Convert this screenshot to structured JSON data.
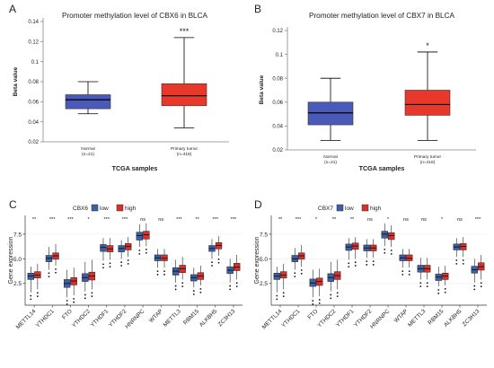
{
  "chart_data": [
    {
      "panel": "A",
      "type": "box",
      "title": "Promoter methylation level of CBX6 in BLCA",
      "xlabel": "TCGA samples",
      "ylabel": "Beta value",
      "ylim": [
        0.02,
        0.14
      ],
      "yticks": [
        "0.02",
        "0.04",
        "0.06",
        "0.08",
        "0.1",
        "0.12",
        "0.14"
      ],
      "categories": [
        {
          "label": "Normal",
          "n": "(n=21)",
          "color": "#4a5ab8",
          "min": 0.048,
          "q1": 0.053,
          "median": 0.062,
          "q3": 0.067,
          "max": 0.08
        },
        {
          "label": "Primary tumor",
          "n": "(n=418)",
          "color": "#e8382c",
          "min": 0.034,
          "q1": 0.056,
          "median": 0.066,
          "q3": 0.078,
          "max": 0.124
        }
      ],
      "significance": "***"
    },
    {
      "panel": "B",
      "type": "box",
      "title": "Promoter methylation level of CBX7 in BLCA",
      "xlabel": "TCGA samples",
      "ylabel": "Beta value",
      "ylim": [
        0.02,
        0.12
      ],
      "yticks": [
        "0.02",
        "0.04",
        "0.06",
        "0.08",
        "0.1",
        "0.12"
      ],
      "categories": [
        {
          "label": "Normal",
          "n": "(n=21)",
          "color": "#4a5ab8",
          "min": 0.028,
          "q1": 0.041,
          "median": 0.051,
          "q3": 0.06,
          "max": 0.08
        },
        {
          "label": "Primary tumor",
          "n": "(n=418)",
          "color": "#e8382c",
          "min": 0.028,
          "q1": 0.049,
          "median": 0.058,
          "q3": 0.07,
          "max": 0.102
        }
      ],
      "significance": "*"
    },
    {
      "panel": "C",
      "type": "grouped-box",
      "legend_title": "CBX6",
      "legend": [
        {
          "name": "low",
          "color": "#3b5fa8"
        },
        {
          "name": "high",
          "color": "#d9302b"
        }
      ],
      "ylabel": "Gene expression",
      "ylim": [
        0.3,
        9.4
      ],
      "yticks": [
        "2.5",
        "5.0",
        "7.5"
      ],
      "genes": [
        {
          "name": "METTL14",
          "sig": "**",
          "low": {
            "min": 1.6,
            "q1": 2.9,
            "median": 3.25,
            "q3": 3.55,
            "max": 4.2
          },
          "high": {
            "min": 1.9,
            "q1": 3.05,
            "median": 3.35,
            "q3": 3.7,
            "max": 4.5
          }
        },
        {
          "name": "YTHDC1",
          "sig": "***",
          "low": {
            "min": 3.9,
            "q1": 4.7,
            "median": 5.05,
            "q3": 5.35,
            "max": 6.2
          },
          "high": {
            "min": 4.3,
            "q1": 4.95,
            "median": 5.3,
            "q3": 5.6,
            "max": 6.5
          }
        },
        {
          "name": "FTO",
          "sig": "***",
          "low": {
            "min": 1.1,
            "q1": 2.1,
            "median": 2.5,
            "q3": 2.9,
            "max": 3.9
          },
          "high": {
            "min": 1.3,
            "q1": 2.35,
            "median": 2.75,
            "q3": 3.1,
            "max": 4.1
          }
        },
        {
          "name": "YTHDC2",
          "sig": "*",
          "low": {
            "min": 1.7,
            "q1": 2.7,
            "median": 3.1,
            "q3": 3.5,
            "max": 4.7
          },
          "high": {
            "min": 1.9,
            "q1": 2.85,
            "median": 3.25,
            "q3": 3.65,
            "max": 4.9
          }
        },
        {
          "name": "YTHDF1",
          "sig": "***",
          "low": {
            "min": 4.8,
            "q1": 5.75,
            "median": 6.15,
            "q3": 6.45,
            "max": 7.1
          },
          "high": {
            "min": 4.9,
            "q1": 5.7,
            "median": 6.0,
            "q3": 6.35,
            "max": 7.1
          }
        },
        {
          "name": "YTHDF2",
          "sig": "***",
          "low": {
            "min": 5.0,
            "q1": 5.7,
            "median": 6.05,
            "q3": 6.35,
            "max": 6.9
          },
          "high": {
            "min": 5.2,
            "q1": 5.9,
            "median": 6.25,
            "q3": 6.55,
            "max": 7.2
          }
        },
        {
          "name": "HNRNPC",
          "sig": "ns",
          "low": {
            "min": 6.2,
            "q1": 6.9,
            "median": 7.35,
            "q3": 7.7,
            "max": 8.5
          },
          "high": {
            "min": 6.3,
            "q1": 7.0,
            "median": 7.45,
            "q3": 7.8,
            "max": 8.6
          }
        },
        {
          "name": "WTAP",
          "sig": "ns",
          "low": {
            "min": 4.1,
            "q1": 4.8,
            "median": 5.1,
            "q3": 5.4,
            "max": 6.0
          },
          "high": {
            "min": 4.1,
            "q1": 4.8,
            "median": 5.05,
            "q3": 5.4,
            "max": 6.0
          }
        },
        {
          "name": "METTL3",
          "sig": "***",
          "low": {
            "min": 2.6,
            "q1": 3.35,
            "median": 3.75,
            "q3": 4.1,
            "max": 4.9
          },
          "high": {
            "min": 2.9,
            "q1": 3.6,
            "median": 4.0,
            "q3": 4.35,
            "max": 5.2
          }
        },
        {
          "name": "RBM15",
          "sig": "**",
          "low": {
            "min": 2.1,
            "q1": 2.75,
            "median": 3.1,
            "q3": 3.4,
            "max": 4.1
          },
          "high": {
            "min": 2.3,
            "q1": 2.9,
            "median": 3.25,
            "q3": 3.6,
            "max": 4.3
          }
        },
        {
          "name": "ALKBH5",
          "sig": "***",
          "low": {
            "min": 5.0,
            "q1": 5.75,
            "median": 6.05,
            "q3": 6.35,
            "max": 7.0
          },
          "high": {
            "min": 5.3,
            "q1": 6.0,
            "median": 6.35,
            "q3": 6.65,
            "max": 7.3
          }
        },
        {
          "name": "ZC3H13",
          "sig": "***",
          "low": {
            "min": 2.6,
            "q1": 3.5,
            "median": 3.85,
            "q3": 4.2,
            "max": 5.0
          },
          "high": {
            "min": 2.9,
            "q1": 3.8,
            "median": 4.15,
            "q3": 4.55,
            "max": 5.4
          }
        }
      ]
    },
    {
      "panel": "D",
      "type": "grouped-box",
      "legend_title": "CBX7",
      "legend": [
        {
          "name": "low",
          "color": "#3b5fa8"
        },
        {
          "name": "high",
          "color": "#d9302b"
        }
      ],
      "ylabel": "Gene expression",
      "ylim": [
        0.3,
        9.4
      ],
      "yticks": [
        "2.5",
        "5.0",
        "7.5"
      ],
      "genes": [
        {
          "name": "METTL14",
          "sig": "**",
          "low": {
            "min": 1.6,
            "q1": 2.9,
            "median": 3.25,
            "q3": 3.55,
            "max": 4.2
          },
          "high": {
            "min": 1.9,
            "q1": 3.05,
            "median": 3.35,
            "q3": 3.7,
            "max": 4.5
          }
        },
        {
          "name": "YTHDC1",
          "sig": "***",
          "low": {
            "min": 3.9,
            "q1": 4.7,
            "median": 5.0,
            "q3": 5.35,
            "max": 6.1
          },
          "high": {
            "min": 4.2,
            "q1": 4.95,
            "median": 5.3,
            "q3": 5.6,
            "max": 6.4
          }
        },
        {
          "name": "FTO",
          "sig": "*",
          "low": {
            "min": 1.1,
            "q1": 2.2,
            "median": 2.55,
            "q3": 2.95,
            "max": 3.9
          },
          "high": {
            "min": 1.2,
            "q1": 2.3,
            "median": 2.7,
            "q3": 3.05,
            "max": 4.0
          }
        },
        {
          "name": "YTHDC2",
          "sig": "**",
          "low": {
            "min": 1.7,
            "q1": 2.7,
            "median": 3.1,
            "q3": 3.5,
            "max": 4.7
          },
          "high": {
            "min": 1.9,
            "q1": 2.9,
            "median": 3.3,
            "q3": 3.7,
            "max": 4.9
          }
        },
        {
          "name": "YTHDF1",
          "sig": "**",
          "low": {
            "min": 4.9,
            "q1": 5.85,
            "median": 6.2,
            "q3": 6.5,
            "max": 7.1
          },
          "high": {
            "min": 5.0,
            "q1": 5.95,
            "median": 6.3,
            "q3": 6.6,
            "max": 7.2
          }
        },
        {
          "name": "YTHDF2",
          "sig": "ns",
          "low": {
            "min": 5.1,
            "q1": 5.8,
            "median": 6.1,
            "q3": 6.4,
            "max": 7.0
          },
          "high": {
            "min": 5.1,
            "q1": 5.8,
            "median": 6.1,
            "q3": 6.4,
            "max": 7.0
          }
        },
        {
          "name": "HNRNPC",
          "sig": "*",
          "low": {
            "min": 6.3,
            "q1": 7.1,
            "median": 7.5,
            "q3": 7.8,
            "max": 8.6
          },
          "high": {
            "min": 6.2,
            "q1": 6.95,
            "median": 7.35,
            "q3": 7.65,
            "max": 8.4
          }
        },
        {
          "name": "WTAP",
          "sig": "ns",
          "low": {
            "min": 4.1,
            "q1": 4.8,
            "median": 5.1,
            "q3": 5.4,
            "max": 6.0
          },
          "high": {
            "min": 4.1,
            "q1": 4.8,
            "median": 5.05,
            "q3": 5.4,
            "max": 6.0
          }
        },
        {
          "name": "METTL3",
          "sig": "ns",
          "low": {
            "min": 2.9,
            "q1": 3.65,
            "median": 4.0,
            "q3": 4.35,
            "max": 5.1
          },
          "high": {
            "min": 2.9,
            "q1": 3.65,
            "median": 4.0,
            "q3": 4.35,
            "max": 5.1
          }
        },
        {
          "name": "RBM15",
          "sig": "*",
          "low": {
            "min": 2.2,
            "q1": 2.8,
            "median": 3.15,
            "q3": 3.45,
            "max": 4.2
          },
          "high": {
            "min": 2.3,
            "q1": 2.9,
            "median": 3.25,
            "q3": 3.55,
            "max": 4.3
          }
        },
        {
          "name": "ALKBH5",
          "sig": "ns",
          "low": {
            "min": 5.2,
            "q1": 5.9,
            "median": 6.2,
            "q3": 6.5,
            "max": 7.1
          },
          "high": {
            "min": 5.2,
            "q1": 5.9,
            "median": 6.25,
            "q3": 6.55,
            "max": 7.2
          }
        },
        {
          "name": "ZC3H13",
          "sig": "***",
          "low": {
            "min": 2.6,
            "q1": 3.55,
            "median": 3.9,
            "q3": 4.25,
            "max": 5.0
          },
          "high": {
            "min": 2.9,
            "q1": 3.85,
            "median": 4.2,
            "q3": 4.6,
            "max": 5.4
          }
        }
      ]
    }
  ]
}
